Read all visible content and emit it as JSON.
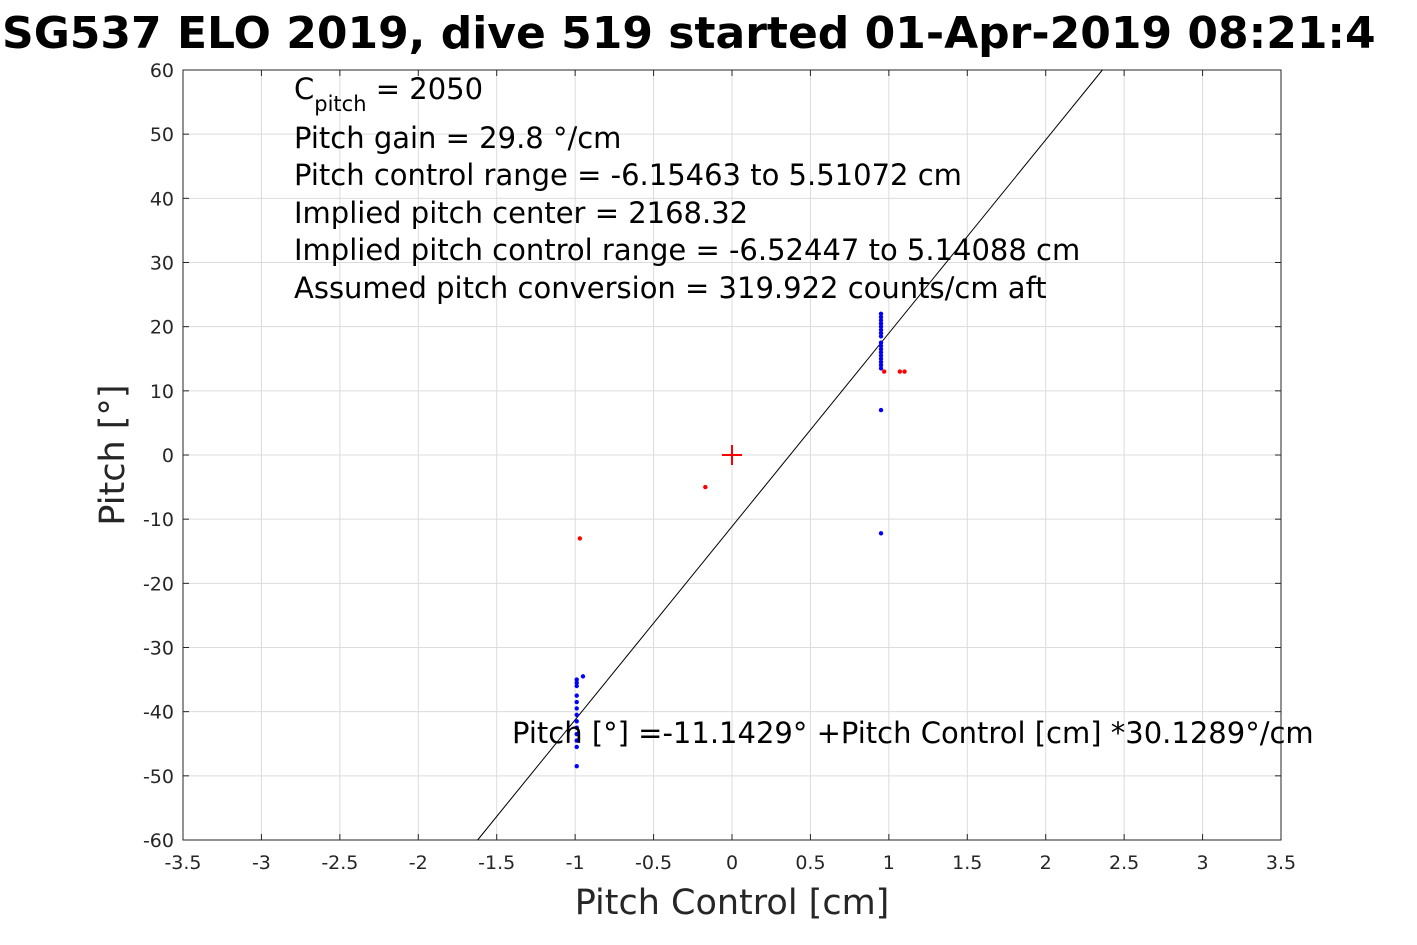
{
  "chart_data": {
    "type": "scatter",
    "title": "SG537 ELO 2019, dive 519 started 01-Apr-2019 08:21:4",
    "xlabel": "Pitch Control [cm]",
    "ylabel": "Pitch [°]",
    "xlim": [
      -3.5,
      3.5
    ],
    "ylim": [
      -60,
      60
    ],
    "xticks": [
      -3.5,
      -3,
      -2.5,
      -2,
      -1.5,
      -1,
      -0.5,
      0,
      0.5,
      1,
      1.5,
      2,
      2.5,
      3,
      3.5
    ],
    "xtick_labels": [
      "-3.5",
      "-3",
      "-2.5",
      "-2",
      "-1.5",
      "-1",
      "-0.5",
      "0",
      "0.5",
      "1",
      "1.5",
      "2",
      "2.5",
      "3",
      "3.5"
    ],
    "yticks": [
      -60,
      -50,
      -40,
      -30,
      -20,
      -10,
      0,
      10,
      20,
      30,
      40,
      50,
      60
    ],
    "ytick_labels": [
      "-60",
      "-50",
      "-40",
      "-30",
      "-20",
      "-10",
      "0",
      "10",
      "20",
      "30",
      "40",
      "50",
      "60"
    ],
    "grid": true,
    "annotations": {
      "c_pitch_main": "C",
      "c_pitch_sub": "pitch",
      "c_pitch_value": " = 2050",
      "lines": [
        "Pitch gain = 29.8 °/cm",
        "Pitch control range = -6.15463 to 5.51072 cm",
        "Implied pitch center = 2168.32",
        "Implied pitch control range = -6.52447 to 5.14088 cm",
        "Assumed pitch conversion = 319.922 counts/cm aft"
      ],
      "fit_equation": "Pitch [°] =-11.1429° +Pitch Control [cm] *30.1289°/cm"
    },
    "fit_line": {
      "intercept": -11.1429,
      "slope": 30.1289,
      "color": "#000000"
    },
    "center_marker": {
      "x": 0,
      "y": 0,
      "color": "#ff0000"
    },
    "series": [
      {
        "color": "#0000ff",
        "points": [
          [
            -0.99,
            -48.5
          ],
          [
            -0.99,
            -45.5
          ],
          [
            -0.99,
            -44.5
          ],
          [
            -0.99,
            -43.5
          ],
          [
            -0.99,
            -42.5
          ],
          [
            -0.99,
            -41.5
          ],
          [
            -0.99,
            -40.5
          ],
          [
            -0.99,
            -39.5
          ],
          [
            -0.99,
            -38.5
          ],
          [
            -0.99,
            -37.5
          ],
          [
            -0.99,
            -36
          ],
          [
            -0.99,
            -35.5
          ],
          [
            -0.99,
            -35
          ],
          [
            -0.95,
            -34.5
          ],
          [
            0.95,
            22
          ],
          [
            0.95,
            21.5
          ],
          [
            0.95,
            21
          ],
          [
            0.95,
            20.5
          ],
          [
            0.95,
            20
          ],
          [
            0.95,
            19.5
          ],
          [
            0.95,
            19
          ],
          [
            0.95,
            18.5
          ],
          [
            0.95,
            17.5
          ],
          [
            0.95,
            17
          ],
          [
            0.95,
            16.5
          ],
          [
            0.95,
            16
          ],
          [
            0.95,
            15.5
          ],
          [
            0.95,
            15
          ],
          [
            0.95,
            14.5
          ],
          [
            0.95,
            14
          ],
          [
            0.95,
            13.5
          ],
          [
            0.95,
            7
          ],
          [
            0.95,
            -12.2
          ]
        ]
      },
      {
        "color": "#ff0000",
        "points": [
          [
            -0.97,
            -13
          ],
          [
            -0.17,
            -5
          ],
          [
            0.97,
            13
          ],
          [
            1.07,
            13
          ],
          [
            1.1,
            13
          ]
        ]
      }
    ]
  }
}
